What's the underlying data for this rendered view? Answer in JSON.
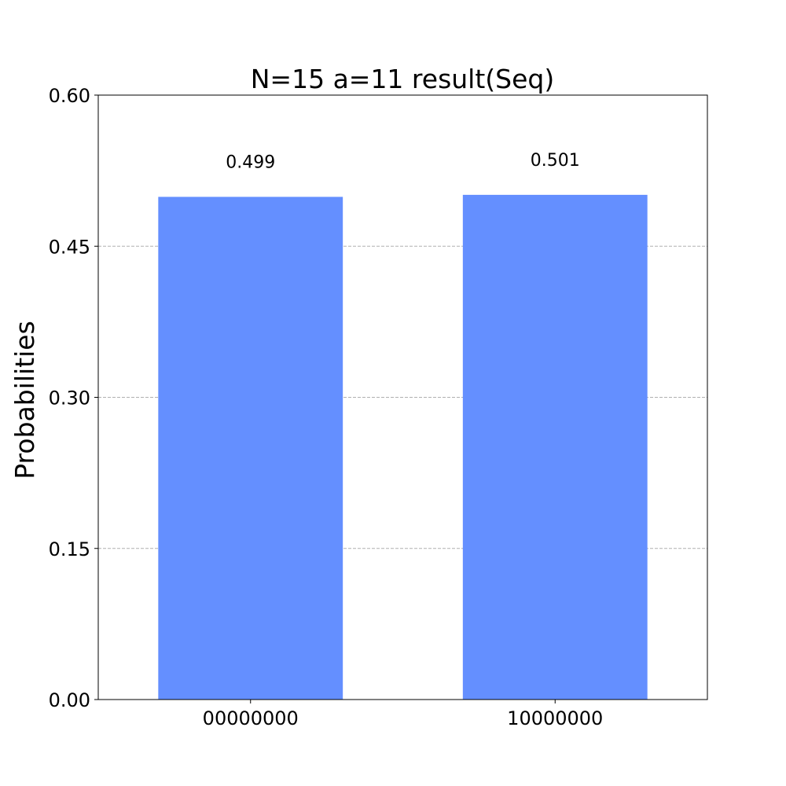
{
  "chart_data": {
    "type": "bar",
    "title": "N=15 a=11 result(Seq)",
    "xlabel": "",
    "ylabel": "Probabilities",
    "categories": [
      "00000000",
      "10000000"
    ],
    "values": [
      0.499,
      0.501
    ],
    "value_labels": [
      "0.499",
      "0.501"
    ],
    "ylim": [
      0,
      0.6
    ],
    "yticks": [
      0.0,
      0.15,
      0.3,
      0.45,
      0.6
    ],
    "ytick_labels": [
      "0.00",
      "0.15",
      "0.30",
      "0.45",
      "0.60"
    ],
    "grid": "y-dashed",
    "bar_color": "#648fff",
    "grid_color": "#b0b0b0"
  }
}
